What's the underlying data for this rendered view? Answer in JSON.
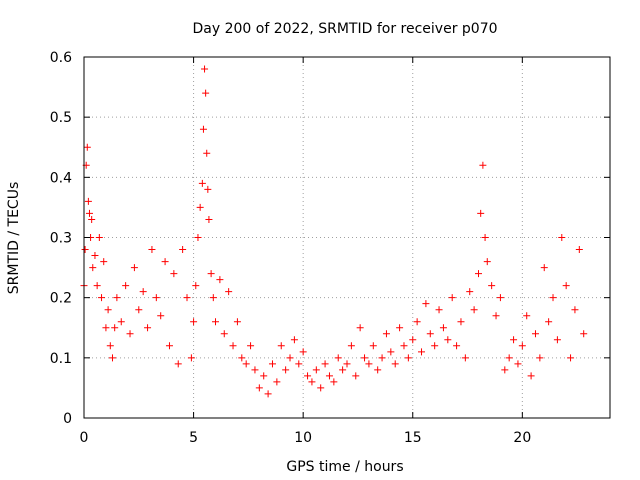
{
  "chart_data": {
    "type": "scatter",
    "title": "Day 200 of 2022, SRMTID for receiver p070",
    "xlabel": "GPS time / hours",
    "ylabel": "SRMTID / TECUs",
    "xlim": [
      0,
      24
    ],
    "ylim": [
      0,
      0.6
    ],
    "x_ticks": [
      0,
      5,
      10,
      15,
      20
    ],
    "y_ticks": [
      0,
      0.1,
      0.2,
      0.3,
      0.4,
      0.5,
      0.6
    ],
    "x_tick_labels": [
      "0",
      "5",
      "10",
      "15",
      "20"
    ],
    "y_tick_labels": [
      "0",
      "0.1",
      "0.2",
      "0.3",
      "0.4",
      "0.5",
      "0.6"
    ],
    "grid": true,
    "marker": "+",
    "color": "#ff0000",
    "series": [
      {
        "name": "SRMTID",
        "x": [
          0.0,
          0.05,
          0.1,
          0.15,
          0.2,
          0.25,
          0.3,
          0.35,
          0.4,
          0.5,
          0.6,
          0.7,
          0.8,
          0.9,
          1.0,
          1.1,
          1.2,
          1.3,
          1.4,
          1.5,
          1.7,
          1.9,
          2.1,
          2.3,
          2.5,
          2.7,
          2.9,
          3.1,
          3.3,
          3.5,
          3.7,
          3.9,
          4.1,
          4.3,
          4.5,
          4.7,
          4.9,
          5.0,
          5.1,
          5.2,
          5.3,
          5.4,
          5.45,
          5.5,
          5.55,
          5.6,
          5.65,
          5.7,
          5.8,
          5.9,
          6.0,
          6.2,
          6.4,
          6.6,
          6.8,
          7.0,
          7.2,
          7.4,
          7.6,
          7.8,
          8.0,
          8.2,
          8.4,
          8.6,
          8.8,
          9.0,
          9.2,
          9.4,
          9.6,
          9.8,
          10.0,
          10.2,
          10.4,
          10.6,
          10.8,
          11.0,
          11.2,
          11.4,
          11.6,
          11.8,
          12.0,
          12.2,
          12.4,
          12.6,
          12.8,
          13.0,
          13.2,
          13.4,
          13.6,
          13.8,
          14.0,
          14.2,
          14.4,
          14.6,
          14.8,
          15.0,
          15.2,
          15.4,
          15.6,
          15.8,
          16.0,
          16.2,
          16.4,
          16.6,
          16.8,
          17.0,
          17.2,
          17.4,
          17.6,
          17.8,
          18.0,
          18.1,
          18.2,
          18.3,
          18.4,
          18.6,
          18.8,
          19.0,
          19.2,
          19.4,
          19.6,
          19.8,
          20.0,
          20.2,
          20.4,
          20.6,
          20.8,
          21.0,
          21.2,
          21.4,
          21.6,
          21.8,
          22.0,
          22.2,
          22.4,
          22.6,
          22.8
        ],
        "y": [
          0.22,
          0.28,
          0.42,
          0.45,
          0.36,
          0.34,
          0.3,
          0.33,
          0.25,
          0.27,
          0.22,
          0.3,
          0.2,
          0.26,
          0.15,
          0.18,
          0.12,
          0.1,
          0.15,
          0.2,
          0.16,
          0.22,
          0.14,
          0.25,
          0.18,
          0.21,
          0.15,
          0.28,
          0.2,
          0.17,
          0.26,
          0.12,
          0.24,
          0.09,
          0.28,
          0.2,
          0.1,
          0.16,
          0.22,
          0.3,
          0.35,
          0.39,
          0.48,
          0.58,
          0.54,
          0.44,
          0.38,
          0.33,
          0.24,
          0.2,
          0.16,
          0.23,
          0.14,
          0.21,
          0.12,
          0.16,
          0.1,
          0.09,
          0.12,
          0.08,
          0.05,
          0.07,
          0.04,
          0.09,
          0.06,
          0.12,
          0.08,
          0.1,
          0.13,
          0.09,
          0.11,
          0.07,
          0.06,
          0.08,
          0.05,
          0.09,
          0.07,
          0.06,
          0.1,
          0.08,
          0.09,
          0.12,
          0.07,
          0.15,
          0.1,
          0.09,
          0.12,
          0.08,
          0.1,
          0.14,
          0.11,
          0.09,
          0.15,
          0.12,
          0.1,
          0.13,
          0.16,
          0.11,
          0.19,
          0.14,
          0.12,
          0.18,
          0.15,
          0.13,
          0.2,
          0.12,
          0.16,
          0.1,
          0.21,
          0.18,
          0.24,
          0.34,
          0.42,
          0.3,
          0.26,
          0.22,
          0.17,
          0.2,
          0.08,
          0.1,
          0.13,
          0.09,
          0.12,
          0.17,
          0.07,
          0.14,
          0.1,
          0.25,
          0.16,
          0.2,
          0.13,
          0.3,
          0.22,
          0.1,
          0.18,
          0.28,
          0.14
        ]
      }
    ]
  }
}
